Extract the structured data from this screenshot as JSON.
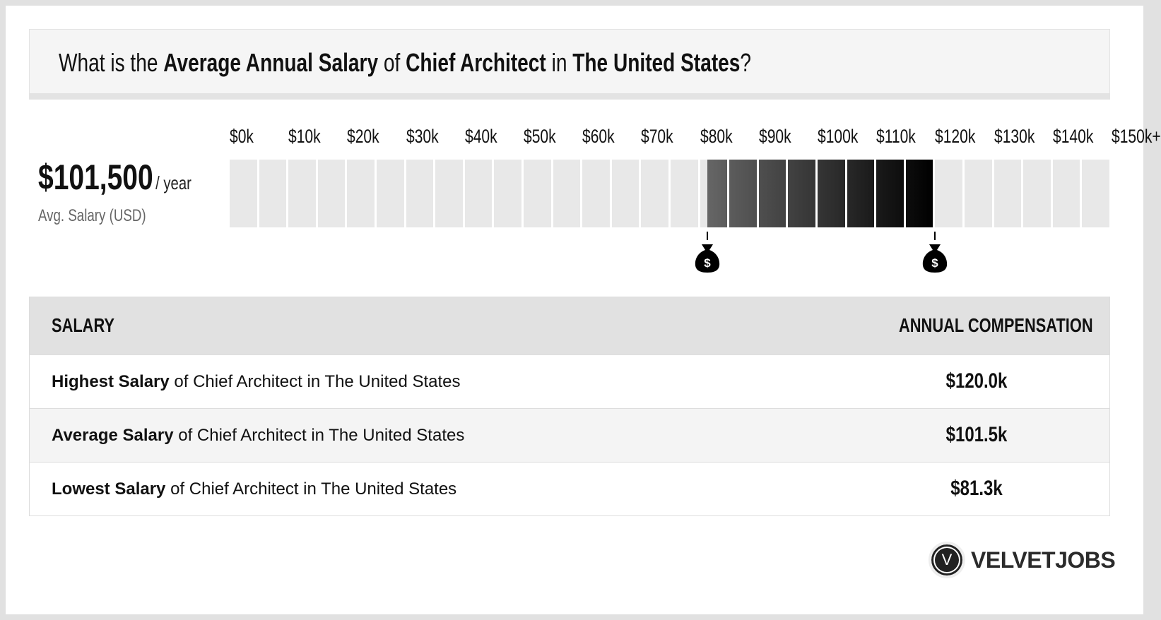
{
  "header": {
    "p1": "What is the ",
    "b1": "Average Annual Salary",
    "p2": " of ",
    "b2": "Chief Architect",
    "p3": " in ",
    "b3": "The United States",
    "p4": "?"
  },
  "summary": {
    "value": "$101,500",
    "unit": "/ year",
    "label": "Avg. Salary (USD)"
  },
  "range_bar": {
    "min": 0,
    "max": 150,
    "step": 5,
    "low": 81.3,
    "high": 120,
    "unit": "k USD",
    "tick_labels": [
      "$0k",
      "$10k",
      "$20k",
      "$30k",
      "$40k",
      "$50k",
      "$60k",
      "$70k",
      "$80k",
      "$90k",
      "$100k",
      "$110k",
      "$120k",
      "$130k",
      "$140k",
      "$150k+"
    ],
    "empty_color": "#e8e8e8",
    "fill_start_color": "#666666",
    "fill_end_color": "#000000",
    "marker_icon": "money-bag-icon"
  },
  "table": {
    "col1": "SALARY",
    "col2": "ANNUAL COMPENSATION",
    "rows": [
      {
        "bold": "Highest Salary",
        "rest": " of Chief Architect in The United States",
        "value": "$120.0k"
      },
      {
        "bold": "Average Salary",
        "rest": " of Chief Architect in The United States",
        "value": "$101.5k"
      },
      {
        "bold": "Lowest Salary",
        "rest": " of Chief Architect in The United States",
        "value": "$81.3k"
      }
    ]
  },
  "logo": {
    "letter": "V",
    "text": "VELVETJOBS"
  }
}
